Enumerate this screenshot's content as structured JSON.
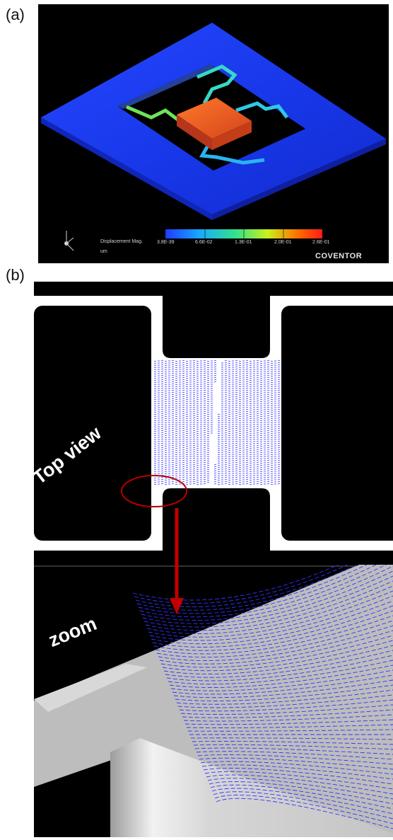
{
  "panel_a": {
    "label": "(a)",
    "colorbar": {
      "title": "Displacement Mag.",
      "unit": "um",
      "ticks": [
        "3.8E-39",
        "6.6E-02",
        "1.3E-01",
        "2.0E-01",
        "2.6E-01"
      ],
      "colors": [
        "#1f3bff",
        "#19a9ff",
        "#33e28a",
        "#c9f21b",
        "#ff6a00",
        "#ff1a1a"
      ]
    },
    "brand": "COVENTOR"
  },
  "panel_b": {
    "label": "(b)",
    "top_view_label": "Top view",
    "zoom_label": "zoom",
    "arrow_color": "#c00000",
    "vector_color": "#3333ff"
  }
}
